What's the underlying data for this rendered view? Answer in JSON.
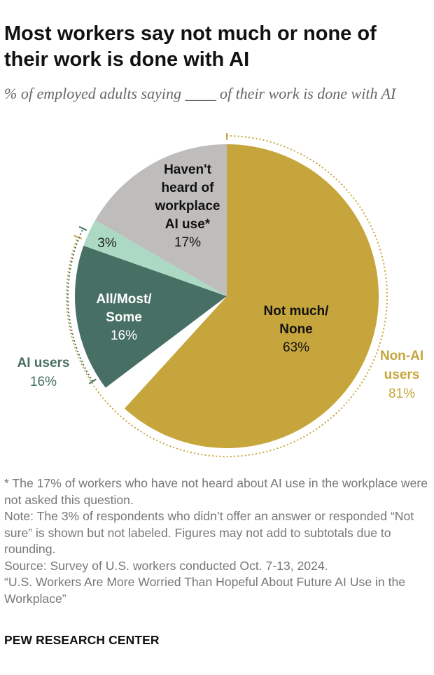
{
  "title": "Most workers say not much or none of their work is done with AI",
  "subtitle": "% of employed adults saying ____ of their work is done with AI",
  "chart_data": {
    "type": "pie",
    "slices": [
      {
        "label": "Not much/ None",
        "lines": [
          "Not much/",
          "None"
        ],
        "value": 63,
        "value_label": "63%",
        "color": "#c6a63c",
        "text_color": "#111111"
      },
      {
        "label": "",
        "lines": [],
        "value": 3,
        "value_label": "",
        "color": "#ffffff",
        "text_color": "#111111"
      },
      {
        "label": "All/Most/ Some",
        "lines": [
          "All/Most/",
          "Some"
        ],
        "value": 16,
        "value_label": "16%",
        "color": "#476f64",
        "text_color": "#ffffff"
      },
      {
        "label": "3%",
        "lines": [],
        "value": 3,
        "value_label": "3%",
        "color": "#acd9c3",
        "text_color": "#222222"
      },
      {
        "label": "Haven't heard of workplace AI use*",
        "lines": [
          "Haven't",
          "heard of",
          "workplace",
          "AI use*"
        ],
        "value": 17,
        "value_label": "17%",
        "color": "#bfbdbc",
        "text_color": "#111111"
      }
    ],
    "groups": [
      {
        "label": "Non-AI users",
        "lines": [
          "Non-AI",
          "users"
        ],
        "value_label": "81%",
        "color": "#c6a63c",
        "start": 0,
        "end": 81
      },
      {
        "label": "AI users",
        "lines": [
          "AI users"
        ],
        "value_label": "16%",
        "color": "#476f64",
        "start": 66,
        "end": 82
      }
    ],
    "colors": {
      "non_ai": "#c6a63c",
      "ai_users": "#476f64",
      "not_sure": "#acd9c3",
      "not_heard": "#bfbdbc"
    }
  },
  "notes": [
    "* The 17% of workers who have not heard about AI use in the workplace were not asked this question.",
    "Note: The 3% of respondents who didn’t offer an answer or responded “Not sure” is shown but not labeled. Figures may not add to subtotals due to rounding.",
    "Source: Survey of U.S. workers conducted Oct. 7-13, 2024.",
    "“U.S. Workers Are More Worried Than Hopeful About Future AI Use in the Workplace”"
  ],
  "brand": "PEW RESEARCH CENTER"
}
